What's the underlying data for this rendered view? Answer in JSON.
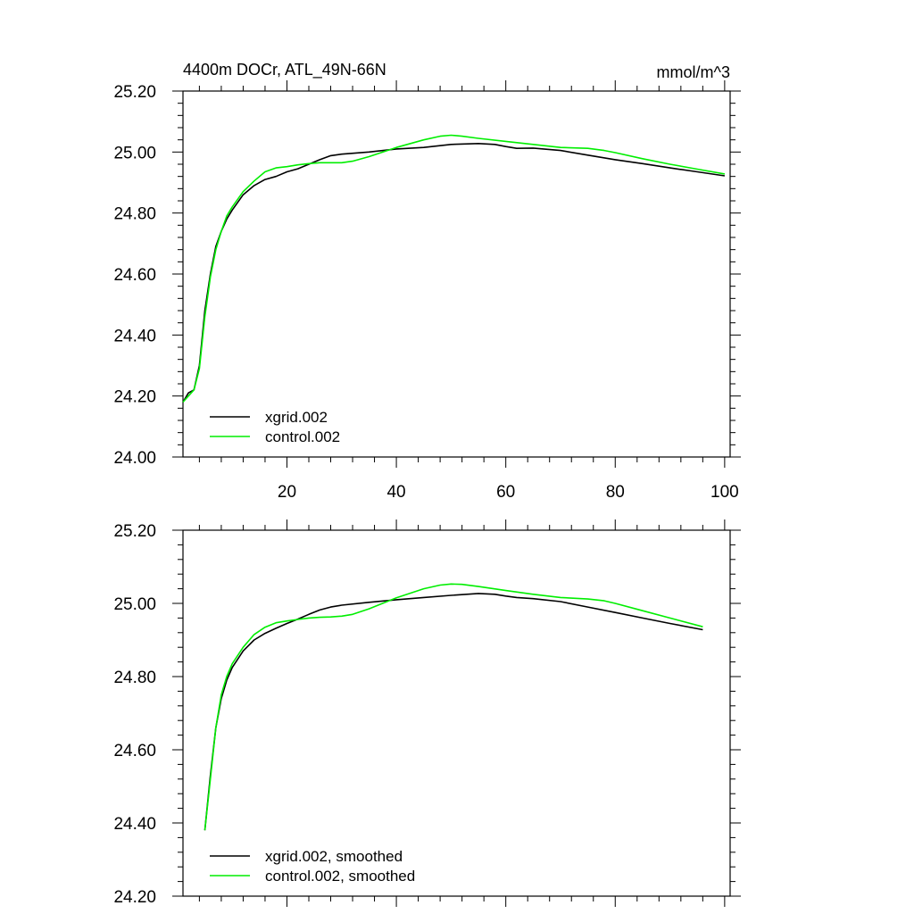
{
  "figure": {
    "title_left": "4400m DOCr, ATL_49N-66N",
    "title_right": "mmol/m^3"
  },
  "chart_data": [
    {
      "type": "line",
      "title": "4400m DOCr, ATL_49N-66N",
      "units": "mmol/m^3",
      "xlim": [
        1,
        101
      ],
      "ylim": [
        24.0,
        25.2
      ],
      "x_ticks": [
        20,
        40,
        60,
        80,
        100
      ],
      "x_tick_labels": [
        "20",
        "40",
        "60",
        "80",
        "100"
      ],
      "y_ticks": [
        24.0,
        24.2,
        24.4,
        24.6,
        24.8,
        25.0,
        25.2
      ],
      "y_tick_labels": [
        "24.00",
        "24.20",
        "24.40",
        "24.60",
        "24.80",
        "25.00",
        "25.20"
      ],
      "legend_position": "bottom-left",
      "series": [
        {
          "name": "xgrid.002",
          "color": "#000000",
          "x": [
            1,
            2,
            3,
            4,
            5,
            6,
            7,
            8,
            9,
            10,
            12,
            14,
            16,
            18,
            20,
            22,
            24,
            26,
            28,
            30,
            35,
            40,
            45,
            50,
            55,
            58,
            60,
            62,
            65,
            70,
            75,
            80,
            85,
            90,
            95,
            100
          ],
          "y": [
            24.18,
            24.21,
            24.22,
            24.3,
            24.48,
            24.6,
            24.69,
            24.74,
            24.78,
            24.81,
            24.86,
            24.89,
            24.91,
            24.92,
            24.935,
            24.945,
            24.96,
            24.975,
            24.988,
            24.993,
            25.0,
            25.01,
            25.015,
            25.025,
            25.028,
            25.025,
            25.018,
            25.012,
            25.013,
            25.005,
            24.99,
            24.975,
            24.962,
            24.948,
            24.935,
            24.922
          ]
        },
        {
          "name": "control.002",
          "color": "#00ee00",
          "x": [
            1,
            2,
            3,
            4,
            5,
            6,
            7,
            8,
            9,
            10,
            12,
            14,
            16,
            18,
            20,
            22,
            24,
            26,
            28,
            30,
            32,
            35,
            40,
            45,
            48,
            50,
            52,
            55,
            60,
            65,
            70,
            75,
            78,
            80,
            85,
            90,
            95,
            100
          ],
          "y": [
            24.18,
            24.2,
            24.22,
            24.29,
            24.46,
            24.59,
            24.68,
            24.74,
            24.79,
            24.82,
            24.87,
            24.905,
            24.935,
            24.948,
            24.952,
            24.958,
            24.962,
            24.965,
            24.965,
            24.965,
            24.97,
            24.985,
            25.015,
            25.04,
            25.052,
            25.055,
            25.052,
            25.045,
            25.035,
            25.025,
            25.015,
            25.012,
            25.005,
            24.998,
            24.978,
            24.96,
            24.944,
            24.928
          ]
        }
      ]
    },
    {
      "type": "line",
      "xlim": [
        1,
        101
      ],
      "ylim": [
        24.2,
        25.2
      ],
      "x_ticks": [
        20,
        40,
        60,
        80,
        100
      ],
      "x_tick_labels": [],
      "y_ticks": [
        24.2,
        24.4,
        24.6,
        24.8,
        25.0,
        25.2
      ],
      "y_tick_labels": [
        "24.20",
        "24.40",
        "24.60",
        "24.80",
        "25.00",
        "25.20"
      ],
      "legend_position": "bottom-left",
      "series": [
        {
          "name": "xgrid.002, smoothed",
          "color": "#000000",
          "x": [
            5,
            6,
            7,
            8,
            9,
            10,
            12,
            14,
            16,
            18,
            20,
            22,
            24,
            26,
            28,
            30,
            35,
            40,
            45,
            50,
            55,
            58,
            60,
            62,
            65,
            70,
            75,
            80,
            85,
            90,
            96
          ],
          "y": [
            24.38,
            24.53,
            24.66,
            24.74,
            24.79,
            24.825,
            24.87,
            24.9,
            24.918,
            24.932,
            24.945,
            24.957,
            24.97,
            24.982,
            24.99,
            24.995,
            25.003,
            25.01,
            25.016,
            25.022,
            25.027,
            25.025,
            25.02,
            25.016,
            25.013,
            25.005,
            24.99,
            24.975,
            24.96,
            24.945,
            24.928
          ]
        },
        {
          "name": "control.002, smoothed",
          "color": "#00ee00",
          "x": [
            5,
            6,
            7,
            8,
            9,
            10,
            12,
            14,
            16,
            18,
            20,
            22,
            24,
            26,
            28,
            30,
            32,
            35,
            40,
            45,
            48,
            50,
            52,
            55,
            60,
            65,
            70,
            75,
            78,
            80,
            85,
            90,
            96
          ],
          "y": [
            24.38,
            24.52,
            24.66,
            24.75,
            24.8,
            24.835,
            24.88,
            24.915,
            24.935,
            24.947,
            24.952,
            24.956,
            24.96,
            24.962,
            24.963,
            24.965,
            24.97,
            24.985,
            25.015,
            25.04,
            25.05,
            25.053,
            25.052,
            25.046,
            25.035,
            25.025,
            25.016,
            25.012,
            25.007,
            25.0,
            24.98,
            24.96,
            24.936
          ]
        }
      ]
    }
  ]
}
